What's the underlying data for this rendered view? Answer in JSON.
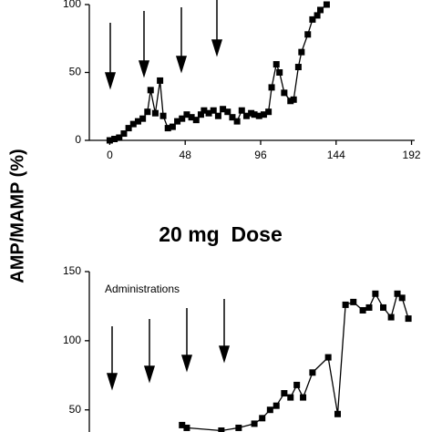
{
  "chart_data": [
    {
      "type": "line",
      "ylabel": "AMP/MAMP (%)",
      "color": "#000000",
      "xlim": [
        -13,
        194
      ],
      "xticks": [
        0,
        48,
        96,
        144,
        192
      ],
      "ylim": [
        0,
        100
      ],
      "yticks": [
        0,
        50,
        100
      ],
      "x": [
        0,
        3,
        6,
        9,
        12,
        15,
        18,
        21,
        24,
        26,
        29,
        32,
        34,
        37,
        40,
        43,
        46,
        49,
        52,
        55,
        58,
        60,
        63,
        66,
        69,
        72,
        75,
        78,
        81,
        84,
        87,
        90,
        92,
        95,
        98,
        101,
        103,
        106,
        108,
        111,
        115,
        117,
        120,
        122,
        126,
        129,
        132,
        134,
        138
      ],
      "values": [
        0,
        1,
        2,
        5,
        9,
        12,
        14,
        16,
        21,
        37,
        20,
        44,
        18,
        9,
        10,
        14,
        16,
        19,
        17,
        15,
        19,
        22,
        20,
        22,
        18,
        23,
        21,
        17,
        14,
        22,
        18,
        20,
        19,
        18,
        19,
        21,
        39,
        56,
        50,
        35,
        29,
        30,
        54,
        65,
        78,
        89,
        92,
        96,
        100
      ]
    },
    {
      "type": "line",
      "title": "20 mg  Dose",
      "annotation": "Administrations",
      "color": "#000000",
      "xlim": [
        -13,
        194
      ],
      "ylim": [
        34,
        150
      ],
      "yticks": [
        50,
        100,
        150
      ],
      "x": [
        46,
        49,
        71,
        82,
        92,
        97,
        102,
        106,
        111,
        115,
        119,
        123,
        129,
        139,
        145,
        150,
        155,
        161,
        165,
        169,
        174,
        179,
        183,
        186,
        190
      ],
      "values": [
        39,
        37,
        35,
        37,
        40,
        44,
        50,
        53,
        62,
        59,
        68,
        59,
        77,
        88,
        47,
        126,
        128,
        122,
        124,
        134,
        124,
        117,
        134,
        131,
        116
      ]
    }
  ]
}
